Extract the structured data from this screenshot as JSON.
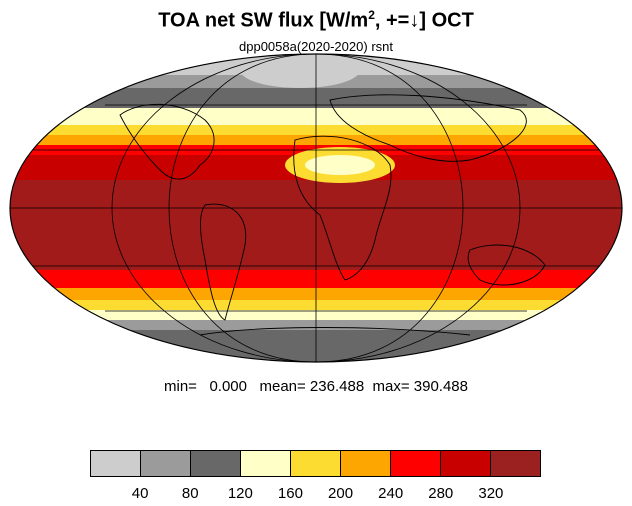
{
  "title": {
    "main": "TOA net SW flux [W/m",
    "sup": "2",
    "rest": ", +=↓]  OCT"
  },
  "subtitle": {
    "run": "dpp0058a(2020-2020)",
    "variable": "rsnt"
  },
  "stats": {
    "line": "min=   0.000   mean= 236.488  max= 390.488"
  },
  "colorbar": {
    "colors": [
      "#cdcdcd",
      "#9b9b9b",
      "#686868",
      "#ffffc8",
      "#fddc32",
      "#fda500",
      "#fe0000",
      "#c90000",
      "#9b2020"
    ],
    "labels": [
      "40",
      "80",
      "120",
      "160",
      "200",
      "240",
      "280",
      "320"
    ]
  }
}
